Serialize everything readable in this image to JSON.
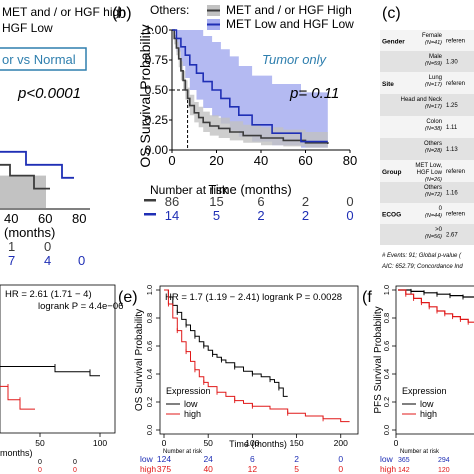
{
  "colors": {
    "gray": "#3c3c3c",
    "gray_band": "#c2c2c2",
    "blue": "#1f2fb5",
    "blue_band": "#a7aef0",
    "km_black": "#000000",
    "km_red": "#e01818",
    "teal_text": "#2f7fae",
    "table_header": "#c9c9c9",
    "table_row_dark": "#e2e2e2"
  },
  "chart_data": [
    {
      "panel": "a",
      "type": "line",
      "visible_partial": true,
      "legend": [
        "MET and / or HGF high",
        "HGF Low"
      ],
      "annotation_box": "or vs Normal",
      "pvalue": "p<0.0001",
      "xlabel": "(months)",
      "xticks": [
        "40",
        "60",
        "80"
      ],
      "risk_table": {
        "row_gray": [
          "1",
          "0"
        ],
        "row_blue": [
          "7",
          "4",
          "0"
        ]
      },
      "series": [
        {
          "name": "MET and / or HGF high",
          "color": "gray",
          "points": [
            [
              0,
              0.4
            ],
            [
              40,
              0.3
            ],
            [
              52,
              0.3
            ],
            [
              52,
              0.18
            ],
            [
              60,
              0.18
            ]
          ]
        },
        {
          "name": "HGF Low",
          "color": "blue",
          "points": [
            [
              0,
              0.52
            ],
            [
              48,
              0.52
            ],
            [
              48,
              0.4
            ],
            [
              66,
              0.4
            ],
            [
              66,
              0.28
            ],
            [
              72,
              0.28
            ]
          ]
        }
      ]
    },
    {
      "panel": "b",
      "type": "line",
      "panel_label": "(b)",
      "legend_title": "Others:",
      "legend": [
        "MET and / or HGF High",
        "MET Low and HGF Low"
      ],
      "annotation": "Tumor only",
      "pvalue": "p= 0.11",
      "ylabel": "OS Survival Probability",
      "xlabel": "Time (months)",
      "yticks": [
        "0.00",
        "0.25",
        "0.50",
        "0.75",
        "1.00"
      ],
      "xticks": [
        "0",
        "20",
        "40",
        "60",
        "80"
      ],
      "xlim": [
        0,
        80
      ],
      "ylim": [
        0,
        1
      ],
      "median_line": {
        "x": 7,
        "y": 0.5
      },
      "risk_title": "Number at risk",
      "risk_table": {
        "row_gray": [
          "86",
          "15",
          "6",
          "2",
          "0"
        ],
        "row_blue": [
          "14",
          "5",
          "2",
          "2",
          "0"
        ]
      },
      "series": [
        {
          "name": "MET and / or HGF High",
          "color": "gray",
          "points": [
            [
              0,
              1.0
            ],
            [
              1,
              0.93
            ],
            [
              2,
              0.85
            ],
            [
              3,
              0.76
            ],
            [
              4,
              0.66
            ],
            [
              5,
              0.58
            ],
            [
              6,
              0.5
            ],
            [
              7,
              0.43
            ],
            [
              8,
              0.37
            ],
            [
              10,
              0.31
            ],
            [
              12,
              0.27
            ],
            [
              14,
              0.23
            ],
            [
              17,
              0.2
            ],
            [
              21,
              0.18
            ],
            [
              26,
              0.15
            ],
            [
              32,
              0.12
            ],
            [
              40,
              0.1
            ],
            [
              50,
              0.08
            ],
            [
              60,
              0.06
            ],
            [
              70,
              0.05
            ]
          ],
          "band_upper": [
            1.0,
            0.96,
            0.9,
            0.83,
            0.74,
            0.66,
            0.58,
            0.52,
            0.46,
            0.4,
            0.36,
            0.32,
            0.29,
            0.27,
            0.24,
            0.21,
            0.19,
            0.17,
            0.15,
            0.13
          ],
          "band_lower": [
            1.0,
            0.88,
            0.79,
            0.69,
            0.58,
            0.5,
            0.42,
            0.35,
            0.29,
            0.23,
            0.19,
            0.15,
            0.12,
            0.1,
            0.08,
            0.06,
            0.04,
            0.03,
            0.02,
            0.01
          ]
        },
        {
          "name": "MET Low and HGF Low",
          "color": "blue",
          "points": [
            [
              0,
              1.0
            ],
            [
              2,
              0.93
            ],
            [
              4,
              0.86
            ],
            [
              6,
              0.79
            ],
            [
              8,
              0.71
            ],
            [
              11,
              0.64
            ],
            [
              14,
              0.57
            ],
            [
              18,
              0.5
            ],
            [
              22,
              0.43
            ],
            [
              26,
              0.36
            ],
            [
              30,
              0.29
            ],
            [
              36,
              0.21
            ],
            [
              45,
              0.14
            ],
            [
              58,
              0.07
            ],
            [
              70,
              0.07
            ]
          ],
          "band_upper": [
            1.0,
            1.0,
            1.0,
            1.0,
            1.0,
            1.0,
            0.95,
            0.9,
            0.84,
            0.78,
            0.7,
            0.62,
            0.55,
            0.48,
            0.4
          ],
          "band_lower": [
            1.0,
            0.82,
            0.7,
            0.6,
            0.5,
            0.42,
            0.35,
            0.28,
            0.22,
            0.16,
            0.11,
            0.07,
            0.04,
            0.02,
            0.02
          ]
        }
      ]
    },
    {
      "panel": "c",
      "type": "table",
      "panel_label": "(c)",
      "visible_partial": true,
      "rows": [
        {
          "group": "Gender",
          "level": "Female",
          "n": "(N=41)",
          "value": "referen"
        },
        {
          "group": "",
          "level": "Male",
          "n": "(N=59)",
          "value": "1.30"
        },
        {
          "group": "Site",
          "level": "Lung",
          "n": "(N=17)",
          "value": "referen"
        },
        {
          "group": "",
          "level": "Head and Neck",
          "n": "(N=17)",
          "value": "1.25"
        },
        {
          "group": "",
          "level": "Colon",
          "n": "(N=38)",
          "value": "1.11"
        },
        {
          "group": "",
          "level": "Others",
          "n": "(N=28)",
          "value": "1.13"
        },
        {
          "group": "Group",
          "level": "MET Low, HGF Low",
          "n": "(N=26)",
          "value": "referen"
        },
        {
          "group": "",
          "level": "Others",
          "n": "(N=72)",
          "value": "1.16"
        },
        {
          "group": "ECOG",
          "level": "0",
          "n": "(N=44)",
          "value": "referen"
        },
        {
          "group": "",
          "level": ">0",
          "n": "(N=56)",
          "value": "2.67"
        }
      ],
      "footnote1": "# Events: 91; Global p-value (",
      "footnote2": "AIC: 652.79; Concordance Ind"
    },
    {
      "panel": "d",
      "type": "line",
      "visible_partial": true,
      "hr_text": "HR = 2.61 (1.71 − 4)",
      "p_text": "logrank P = 4.4e−06",
      "xlabel": "months)",
      "risk_vals_black": [
        "0",
        "0"
      ],
      "risk_vals_red": [
        "0",
        "0"
      ],
      "xticks": [
        "50",
        "100"
      ],
      "series": [
        {
          "name": "low",
          "color": "km_black",
          "points": [
            [
              0,
              0.5
            ],
            [
              55,
              0.5
            ],
            [
              55,
              0.46
            ],
            [
              90,
              0.46
            ],
            [
              90,
              0.43
            ],
            [
              100,
              0.43
            ]
          ]
        },
        {
          "name": "high",
          "color": "km_red",
          "points": [
            [
              0,
              0.35
            ],
            [
              8,
              0.35
            ],
            [
              8,
              0.25
            ],
            [
              20,
              0.25
            ],
            [
              20,
              0.18
            ],
            [
              35,
              0.18
            ]
          ]
        }
      ]
    },
    {
      "panel": "e",
      "type": "line",
      "panel_label": "(e)",
      "hr_text": "HR = 1.7 (1.19 − 2.41) logrank P = 0.0028",
      "ylabel": "OS Survival Probability",
      "xlabel": "Time (months)",
      "yticks": [
        "0.0",
        "0.2",
        "0.4",
        "0.6",
        "0.8",
        "1.0"
      ],
      "xticks": [
        "0",
        "50",
        "100",
        "150",
        "200"
      ],
      "xlim": [
        0,
        215
      ],
      "ylim": [
        0,
        1
      ],
      "legend_title": "Expression",
      "legend": [
        "low",
        "high"
      ],
      "risk_title": "Number at risk",
      "risk_table": {
        "row_low": [
          "124",
          "24",
          "6",
          "2",
          "0"
        ],
        "row_high": [
          "375",
          "40",
          "12",
          "5",
          "0"
        ]
      },
      "risk_labels": [
        "low",
        "high"
      ],
      "series": [
        {
          "name": "low",
          "color": "km_black",
          "points": [
            [
              0,
              1.0
            ],
            [
              5,
              0.95
            ],
            [
              10,
              0.89
            ],
            [
              15,
              0.84
            ],
            [
              20,
              0.79
            ],
            [
              25,
              0.75
            ],
            [
              30,
              0.71
            ],
            [
              35,
              0.67
            ],
            [
              40,
              0.63
            ],
            [
              45,
              0.6
            ],
            [
              50,
              0.57
            ],
            [
              55,
              0.54
            ],
            [
              60,
              0.52
            ],
            [
              65,
              0.5
            ],
            [
              70,
              0.48
            ],
            [
              80,
              0.45
            ],
            [
              90,
              0.42
            ],
            [
              100,
              0.4
            ],
            [
              110,
              0.38
            ],
            [
              120,
              0.36
            ],
            [
              125,
              0.34
            ],
            [
              130,
              0.3
            ],
            [
              135,
              0.24
            ],
            [
              140,
              0.24
            ]
          ]
        },
        {
          "name": "high",
          "color": "km_red",
          "points": [
            [
              0,
              1.0
            ],
            [
              5,
              0.9
            ],
            [
              10,
              0.8
            ],
            [
              15,
              0.71
            ],
            [
              20,
              0.63
            ],
            [
              25,
              0.56
            ],
            [
              30,
              0.49
            ],
            [
              35,
              0.43
            ],
            [
              40,
              0.38
            ],
            [
              45,
              0.34
            ],
            [
              50,
              0.31
            ],
            [
              60,
              0.27
            ],
            [
              70,
              0.24
            ],
            [
              80,
              0.21
            ],
            [
              90,
              0.19
            ],
            [
              100,
              0.17
            ],
            [
              120,
              0.15
            ],
            [
              140,
              0.12
            ],
            [
              160,
              0.1
            ],
            [
              180,
              0.08
            ],
            [
              200,
              0.06
            ],
            [
              210,
              0.06
            ]
          ]
        }
      ]
    },
    {
      "panel": "f",
      "type": "line",
      "panel_label": "(f",
      "visible_partial": true,
      "ylabel": "PFS Survival Probability",
      "yticks": [
        "0.0",
        "0.2",
        "0.4",
        "0.6",
        "0.8",
        "1.0"
      ],
      "xticks": [
        "0"
      ],
      "legend_title": "Expression",
      "legend": [
        "low",
        "high"
      ],
      "risk_title": "Number at risk",
      "risk_labels": [
        "low",
        "high"
      ],
      "risk_table": {
        "row_low": [
          "365",
          "294"
        ],
        "row_high": [
          "142",
          "120"
        ]
      },
      "series": [
        {
          "name": "low",
          "color": "km_black",
          "points": [
            [
              0,
              1.0
            ],
            [
              5,
              0.99
            ],
            [
              10,
              0.98
            ],
            [
              15,
              0.97
            ],
            [
              20,
              0.96
            ],
            [
              25,
              0.95
            ],
            [
              30,
              0.94
            ]
          ]
        },
        {
          "name": "high",
          "color": "km_red",
          "points": [
            [
              0,
              1.0
            ],
            [
              3,
              0.97
            ],
            [
              6,
              0.94
            ],
            [
              9,
              0.91
            ],
            [
              12,
              0.88
            ],
            [
              15,
              0.85
            ],
            [
              18,
              0.83
            ],
            [
              21,
              0.81
            ],
            [
              24,
              0.79
            ],
            [
              27,
              0.77
            ],
            [
              30,
              0.76
            ]
          ]
        }
      ]
    }
  ]
}
